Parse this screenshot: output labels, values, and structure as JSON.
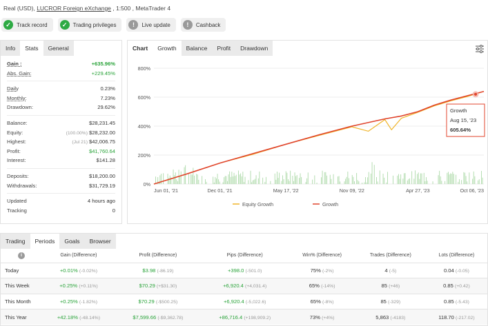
{
  "header": {
    "prefix": "Real (USD), ",
    "broker": "LUCROR Foreign eXchange",
    "suffix": " , 1:500 , MetaTrader 4"
  },
  "pills": [
    {
      "label": "Track record",
      "status": "ok"
    },
    {
      "label": "Trading privileges",
      "status": "ok"
    },
    {
      "label": "Live update",
      "status": "na"
    },
    {
      "label": "Cashback",
      "status": "na"
    }
  ],
  "left_tabs": [
    "Info",
    "Stats",
    "General"
  ],
  "stats": {
    "gain": {
      "k": "Gain :",
      "v": "+635.96%"
    },
    "abs_gain": {
      "k": "Abs. Gain:",
      "v": "+229.45%"
    },
    "daily": {
      "k": "Daily",
      "v": "0.23%"
    },
    "monthly": {
      "k": "Monthly:",
      "v": "7.23%"
    },
    "drawdown": {
      "k": "Drawdown:",
      "v": "29.62%"
    },
    "balance": {
      "k": "Balance:",
      "v": "$28,231.45"
    },
    "equity": {
      "k": "Equity:",
      "sub": "(100.00%)",
      "v": "$28,232.00"
    },
    "highest": {
      "k": "Highest:",
      "sub": "(Jul 21)",
      "v": "$42,006.75"
    },
    "profit": {
      "k": "Profit:",
      "v": "$41,760.64"
    },
    "interest": {
      "k": "Interest:",
      "v": "$141.28"
    },
    "deposits": {
      "k": "Deposits:",
      "v": "$18,200.00"
    },
    "withdrawals": {
      "k": "Withdrawals:",
      "v": "$31,729.19"
    },
    "updated": {
      "k": "Updated",
      "v": "4 hours ago"
    },
    "tracking": {
      "k": "Tracking",
      "v": "0"
    }
  },
  "chart_tabs": [
    "Chart",
    "Growth",
    "Balance",
    "Profit",
    "Drawdown"
  ],
  "tooltip": {
    "title": "Growth",
    "date": "Aug 15, '23",
    "value": "605.64%"
  },
  "chart_data": {
    "type": "line",
    "y_ticks": [
      "800%",
      "600%",
      "400%",
      "200%",
      "0%"
    ],
    "ylim": [
      0,
      800
    ],
    "x_ticks": [
      "Jun 01, '21",
      "Dec 01, '21",
      "May 17, '22",
      "Nov 09, '22",
      "Apr 27, '23",
      "Oct 06, '23"
    ],
    "legend_placement": "bottom",
    "series": [
      {
        "name": "Growth",
        "color": "#e0442c",
        "x": [
          0,
          0.1,
          0.2,
          0.3,
          0.4,
          0.5,
          0.6,
          0.7,
          0.75,
          0.8,
          0.85,
          0.9,
          0.95,
          1.0
        ],
        "values": [
          0,
          70,
          145,
          210,
          275,
          340,
          400,
          450,
          470,
          500,
          545,
          580,
          610,
          640
        ]
      },
      {
        "name": "Equity Growth",
        "color": "#f0b428",
        "x": [
          0,
          0.1,
          0.2,
          0.3,
          0.4,
          0.5,
          0.6,
          0.65,
          0.7,
          0.72,
          0.75,
          0.8,
          0.85,
          0.9,
          0.95,
          1.0
        ],
        "values": [
          0,
          70,
          145,
          205,
          275,
          335,
          395,
          365,
          445,
          375,
          455,
          495,
          540,
          575,
          605,
          640
        ]
      }
    ]
  },
  "bottom_tabs": [
    "Trading",
    "Periods",
    "Goals",
    "Browser"
  ],
  "periods": {
    "headers": [
      "",
      "Gain (Difference)",
      "Profit (Difference)",
      "Pips (Difference)",
      "Win% (Difference)",
      "Trades (Difference)",
      "Lots (Difference)"
    ],
    "rows": [
      {
        "k": "Today",
        "gain": "+0.01%",
        "gain_d": "(-0.02%)",
        "profit": "$3.98",
        "profit_d": "(-86.19)",
        "pips": "+398.0",
        "pips_d": "(-501.0)",
        "win": "75%",
        "win_d": "(-2%)",
        "trades": "4",
        "trades_d": "(-5)",
        "lots": "0.04",
        "lots_d": "(-0.05)"
      },
      {
        "k": "This Week",
        "gain": "+0.25%",
        "gain_d": "(+0.11%)",
        "profit": "$70.29",
        "profit_d": "(+$31.30)",
        "pips": "+6,920.4",
        "pips_d": "(+4,031.4)",
        "win": "65%",
        "win_d": "(-14%)",
        "trades": "85",
        "trades_d": "(+46)",
        "lots": "0.85",
        "lots_d": "(+0.42)"
      },
      {
        "k": "This Month",
        "gain": "+0.25%",
        "gain_d": "(-1.82%)",
        "profit": "$70.29",
        "profit_d": "(-$500.25)",
        "pips": "+6,920.4",
        "pips_d": "(-5,022.6)",
        "win": "65%",
        "win_d": "(-8%)",
        "trades": "85",
        "trades_d": "(-329)",
        "lots": "0.85",
        "lots_d": "(-5.43)"
      },
      {
        "k": "This Year",
        "gain": "+42.18%",
        "gain_d": "(-48.14%)",
        "profit": "$7,599.66",
        "profit_d": "(-$9,362.78)",
        "pips": "+86,716.4",
        "pips_d": "(+198,909.2)",
        "win": "73%",
        "win_d": "(+4%)",
        "trades": "5,863",
        "trades_d": "(-4183)",
        "lots": "118.70",
        "lots_d": "(-217.02)"
      }
    ]
  }
}
